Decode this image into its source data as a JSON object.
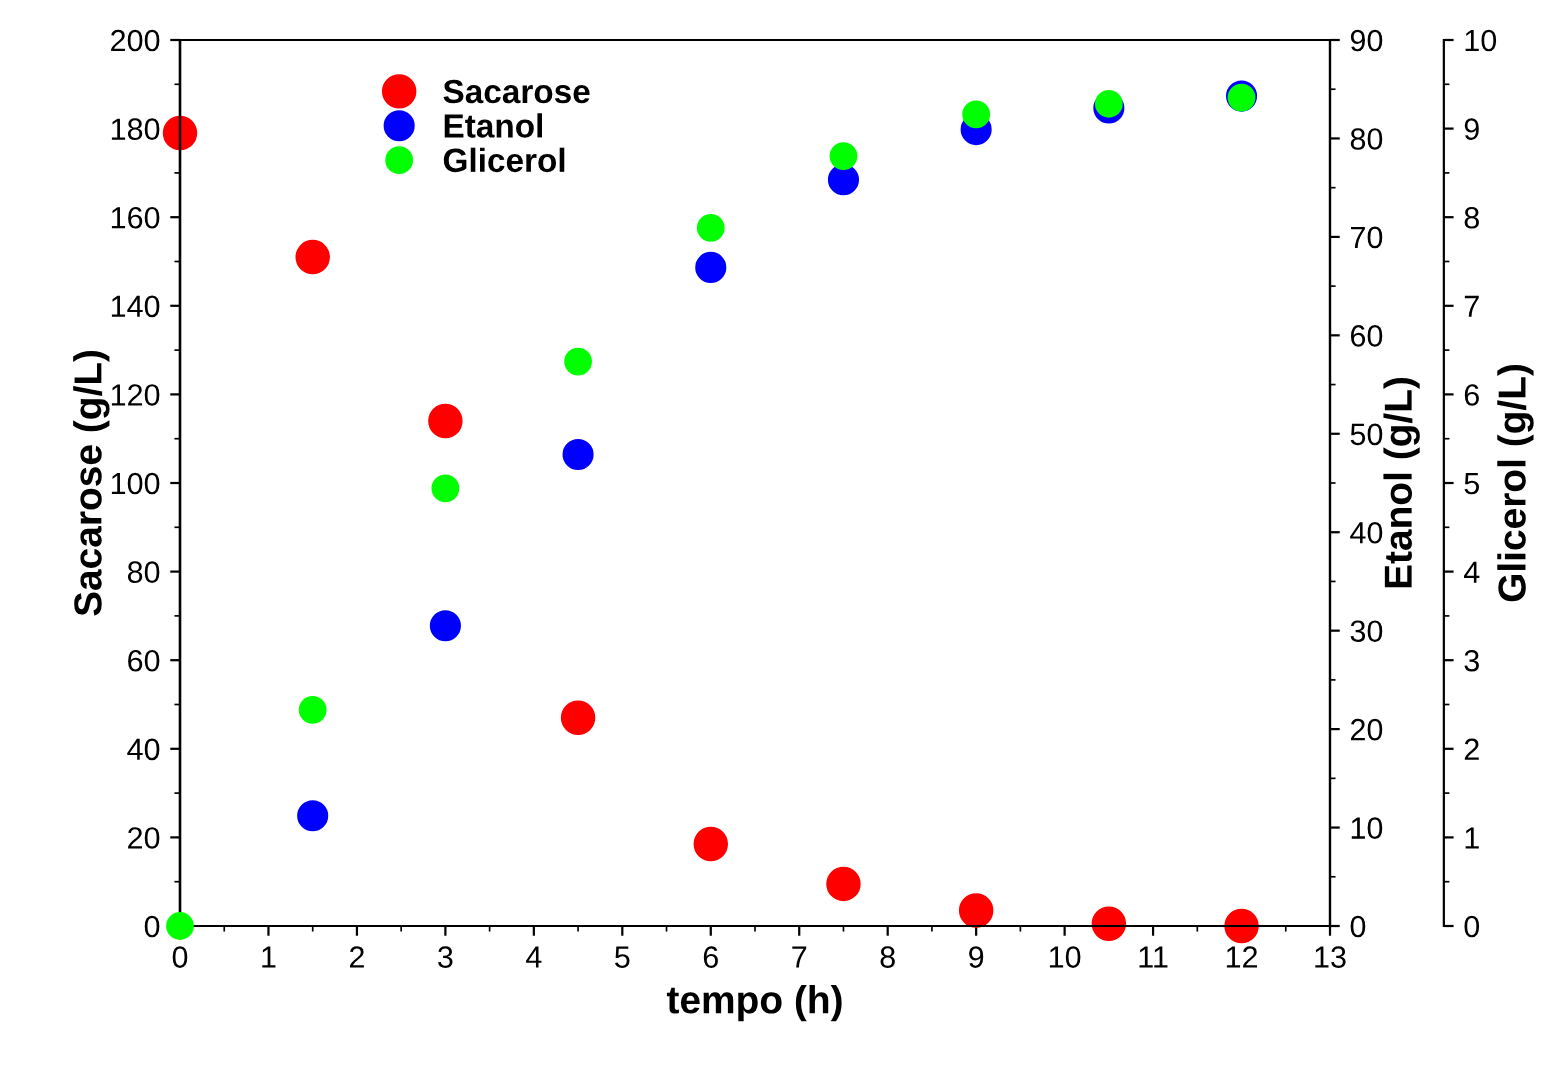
{
  "chart_data": {
    "type": "scatter",
    "xlabel": "tempo (h)",
    "ylabel": "Sacarose (g/L)",
    "y2label": "Etanol (g/L)",
    "y3label": "Glicerol (g/L)",
    "x": [
      0,
      1.5,
      3,
      4.5,
      6,
      7.5,
      9,
      10.5,
      12
    ],
    "series": [
      {
        "name": "Sacarose",
        "color": "#ff0000",
        "axis": "y",
        "values": [
          179,
          151,
          114,
          47,
          18.5,
          9.5,
          3.5,
          0.5,
          0
        ]
      },
      {
        "name": "Etanol",
        "color": "#0000ff",
        "axis": "y2",
        "values": [
          null,
          11.2,
          30.5,
          47.9,
          66.9,
          75.8,
          80.9,
          83.1,
          84.3
        ]
      },
      {
        "name": "Glicerol",
        "color": "#00ff00",
        "axis": "y3",
        "values": [
          0,
          2.44,
          4.94,
          6.37,
          7.88,
          8.69,
          9.16,
          9.28,
          9.35
        ]
      }
    ],
    "xlim": [
      0,
      13
    ],
    "xticks": [
      0,
      1,
      2,
      3,
      4,
      5,
      6,
      7,
      8,
      9,
      10,
      11,
      12,
      13
    ],
    "ylim": [
      0,
      200
    ],
    "yticks": [
      0,
      20,
      40,
      60,
      80,
      100,
      120,
      140,
      160,
      180,
      200
    ],
    "y2lim": [
      0,
      90
    ],
    "y2ticks": [
      0,
      10,
      20,
      30,
      40,
      50,
      60,
      70,
      80,
      90
    ],
    "y3lim": [
      0,
      10
    ],
    "y3ticks": [
      0,
      1,
      2,
      3,
      4,
      5,
      6,
      7,
      8,
      9,
      10
    ],
    "marker": "circle",
    "grid": false,
    "legend": "top left"
  }
}
